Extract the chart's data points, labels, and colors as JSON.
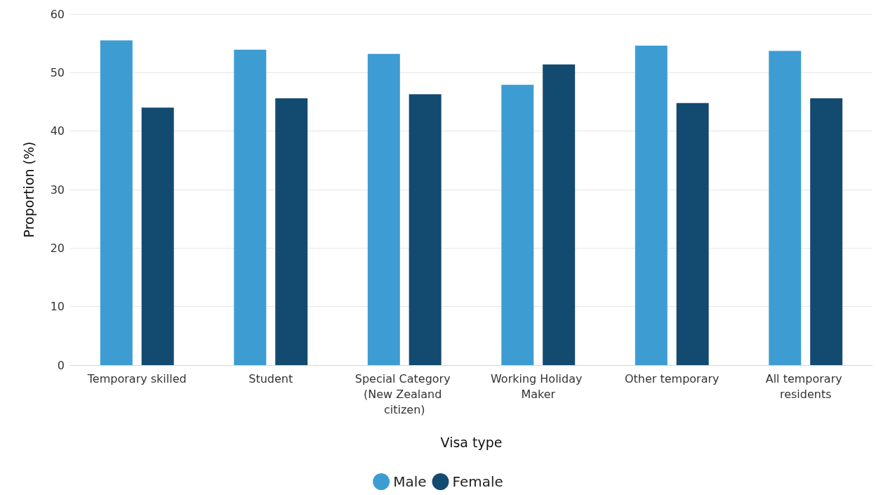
{
  "chart_data": {
    "type": "bar",
    "xlabel": "Visa type",
    "ylabel": "Proportion (%)",
    "categories": [
      "Temporary skilled",
      "Student",
      "Special Category (New Zealand citizen)",
      "Working Holiday Maker",
      "Other temporary",
      "All temporary residents"
    ],
    "series": [
      {
        "name": "Male",
        "color": "#3d9dd3",
        "values": [
          55.5,
          53.9,
          53.2,
          47.9,
          54.6,
          53.7
        ]
      },
      {
        "name": "Female",
        "color": "#134a70",
        "values": [
          44.0,
          45.6,
          46.3,
          51.4,
          44.8,
          45.6
        ]
      }
    ],
    "ylim": [
      0,
      60
    ],
    "yticks": [
      0,
      10,
      20,
      30,
      40,
      50,
      60
    ],
    "grid": "y",
    "legend": "bottom"
  }
}
